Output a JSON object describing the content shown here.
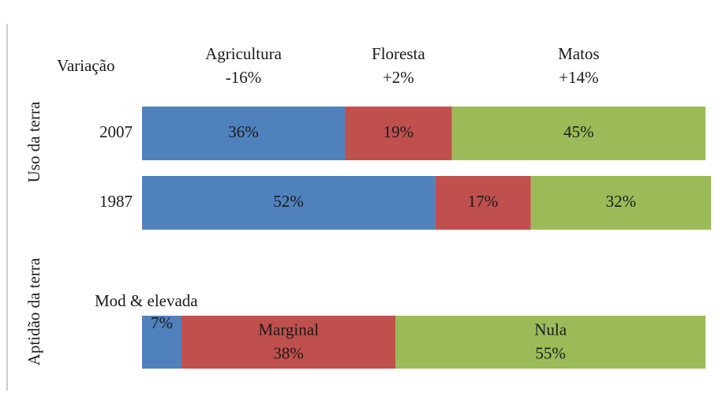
{
  "chart_data": [
    {
      "type": "stacked-bar",
      "orientation": "horizontal",
      "y_label": "Uso da terra",
      "header_label": "Variação",
      "categories": [
        "2007",
        "1987"
      ],
      "variation": [
        "-16%",
        "+2%",
        "+14%"
      ],
      "xlim": [
        0,
        100
      ],
      "series": [
        {
          "name": "Agricultura",
          "color": "#4f81bd",
          "values": [
            36,
            52
          ],
          "value_labels": [
            "36%",
            "52%"
          ]
        },
        {
          "name": "Floresta",
          "color": "#c0504d",
          "values": [
            19,
            17
          ],
          "value_labels": [
            "19%",
            "17%"
          ]
        },
        {
          "name": "Matos",
          "color": "#9bbb59",
          "values": [
            45,
            32
          ],
          "value_labels": [
            "45%",
            "32%"
          ]
        }
      ]
    },
    {
      "type": "stacked-bar",
      "orientation": "horizontal",
      "y_label": "Aptidão da terra",
      "categories": [
        null
      ],
      "xlim": [
        0,
        100
      ],
      "series": [
        {
          "name": "Mod & elevada",
          "color": "#4f81bd",
          "values": [
            7
          ],
          "value_labels": [
            "7%"
          ]
        },
        {
          "name": "Marginal",
          "color": "#c0504d",
          "values": [
            38
          ],
          "value_labels": [
            "38%"
          ]
        },
        {
          "name": "Nula",
          "color": "#9bbb59",
          "values": [
            55
          ],
          "value_labels": [
            "55%"
          ]
        }
      ]
    }
  ]
}
